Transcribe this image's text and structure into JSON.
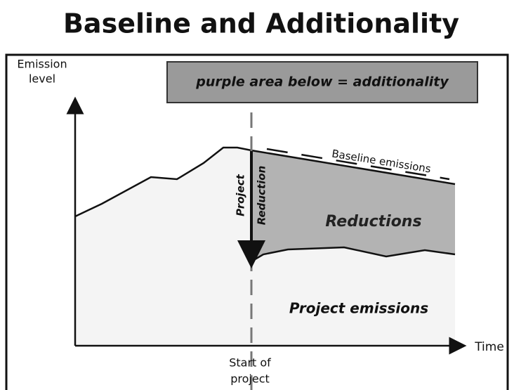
{
  "title": "Baseline and Additionality",
  "note": "purple area below = additionality",
  "y_axis_label": [
    "Emission",
    "level"
  ],
  "x_axis_label": "Time",
  "start_label": [
    "Start of",
    "project"
  ],
  "baseline_label": "Baseline emissions",
  "reduction_arrow_label": [
    "Project",
    "Reduction"
  ],
  "reductions_label": "Reductions",
  "project_emissions_label": "Project emissions"
}
